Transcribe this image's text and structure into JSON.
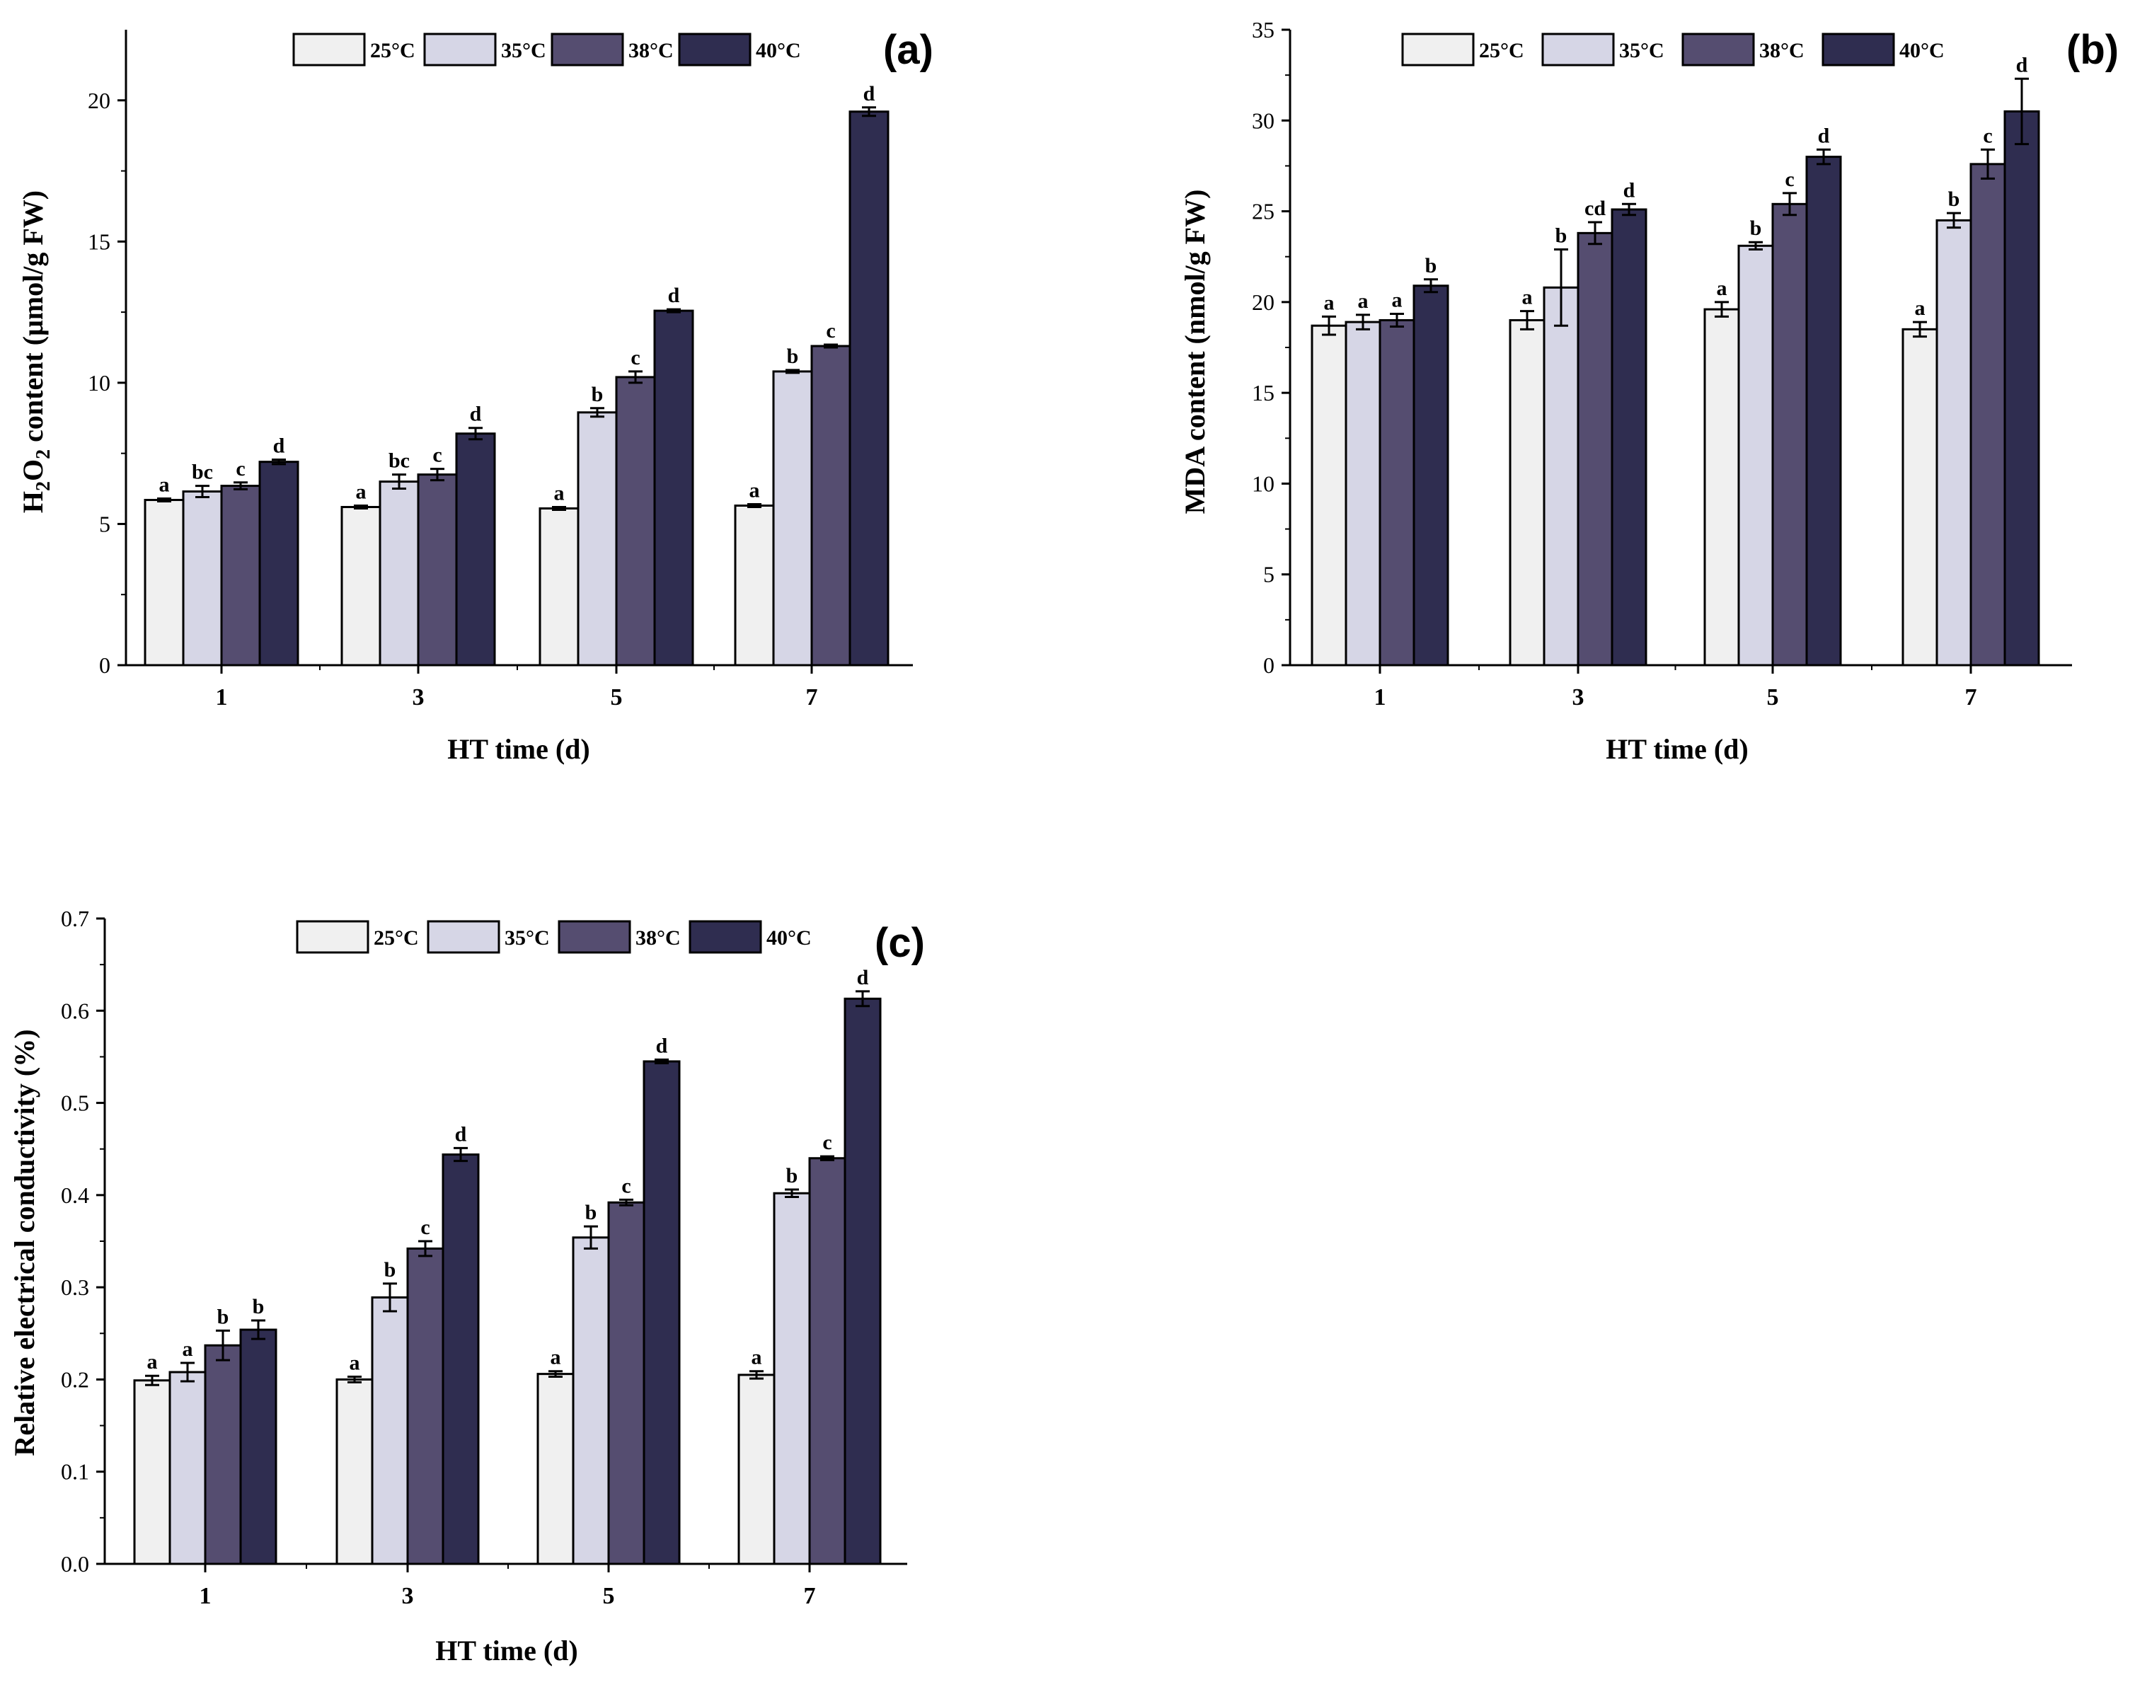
{
  "colors": {
    "s25": "#f0f0f0",
    "s35": "#d6d6e6",
    "s38": "#554d70",
    "s40": "#2f2d50",
    "axis": "#000000"
  },
  "chart_data": [
    {
      "type": "bar",
      "panel_label": "(a)",
      "xlabel": "HT time (d)",
      "ylabel_prefix": "H",
      "ylabel_sub1": "2",
      "ylabel_mid": "O",
      "ylabel_sub2": "2",
      "ylabel_suffix": " content (μmol/g FW)",
      "ylim": [
        0,
        22.5
      ],
      "yticks": [
        "0",
        "5",
        "10",
        "15",
        "20"
      ],
      "ytick_values": [
        0,
        5,
        10,
        15,
        20
      ],
      "categories": [
        "1",
        "3",
        "5",
        "7"
      ],
      "legend_position": "top-center",
      "series": [
        {
          "name": "25°C",
          "values": [
            5.85,
            5.6,
            5.55,
            5.65
          ],
          "errors": [
            0.05,
            0.05,
            0.05,
            0.05
          ],
          "letters": [
            "a",
            "a",
            "a",
            "a"
          ]
        },
        {
          "name": "35°C",
          "values": [
            6.15,
            6.5,
            8.95,
            10.4
          ],
          "errors": [
            0.2,
            0.25,
            0.15,
            0.05
          ],
          "letters": [
            "bc",
            "bc",
            "b",
            "b"
          ]
        },
        {
          "name": "38°C",
          "values": [
            6.35,
            6.75,
            10.2,
            11.3
          ],
          "errors": [
            0.12,
            0.2,
            0.2,
            0.05
          ],
          "letters": [
            "c",
            "c",
            "c",
            "c"
          ]
        },
        {
          "name": "40°C",
          "values": [
            7.2,
            8.2,
            12.55,
            19.6
          ],
          "errors": [
            0.08,
            0.2,
            0.05,
            0.15
          ],
          "letters": [
            "d",
            "d",
            "d",
            "d"
          ]
        }
      ]
    },
    {
      "type": "bar",
      "panel_label": "(b)",
      "xlabel": "HT time (d)",
      "ylabel": "MDA content (nmol/g FW)",
      "ylim": [
        0,
        35
      ],
      "yticks": [
        "0",
        "5",
        "10",
        "15",
        "20",
        "25",
        "30",
        "35"
      ],
      "ytick_values": [
        0,
        5,
        10,
        15,
        20,
        25,
        30,
        35
      ],
      "categories": [
        "1",
        "3",
        "5",
        "7"
      ],
      "legend_position": "top-center",
      "series": [
        {
          "name": "25°C",
          "values": [
            18.7,
            19.0,
            19.6,
            18.5
          ],
          "errors": [
            0.5,
            0.5,
            0.4,
            0.4
          ],
          "letters": [
            "a",
            "a",
            "a",
            "a"
          ]
        },
        {
          "name": "35°C",
          "values": [
            18.9,
            20.8,
            23.1,
            24.5
          ],
          "errors": [
            0.4,
            2.1,
            0.2,
            0.4
          ],
          "letters": [
            "a",
            "b",
            "b",
            "b"
          ]
        },
        {
          "name": "38°C",
          "values": [
            19.0,
            23.8,
            25.4,
            27.6
          ],
          "errors": [
            0.35,
            0.6,
            0.6,
            0.8
          ],
          "letters": [
            "a",
            "cd",
            "c",
            "c"
          ]
        },
        {
          "name": "40°C",
          "values": [
            20.9,
            25.1,
            28.0,
            30.5
          ],
          "errors": [
            0.35,
            0.3,
            0.4,
            1.8
          ],
          "letters": [
            "b",
            "d",
            "d",
            "d"
          ]
        }
      ]
    },
    {
      "type": "bar",
      "panel_label": "(c)",
      "xlabel": "HT time (d)",
      "ylabel": "Relative electrical conductivity (%)",
      "ylim": [
        0,
        0.7
      ],
      "yticks": [
        "0.0",
        "0.1",
        "0.2",
        "0.3",
        "0.4",
        "0.5",
        "0.6",
        "0.7"
      ],
      "ytick_values": [
        0,
        0.1,
        0.2,
        0.3,
        0.4,
        0.5,
        0.6,
        0.7
      ],
      "categories": [
        "1",
        "3",
        "5",
        "7"
      ],
      "legend_position": "top-center",
      "series": [
        {
          "name": "25°C",
          "values": [
            0.199,
            0.2,
            0.206,
            0.205
          ],
          "errors": [
            0.005,
            0.003,
            0.003,
            0.004
          ],
          "letters": [
            "a",
            "a",
            "a",
            "a"
          ]
        },
        {
          "name": "35°C",
          "values": [
            0.208,
            0.289,
            0.354,
            0.402
          ],
          "errors": [
            0.01,
            0.015,
            0.012,
            0.004
          ],
          "letters": [
            "a",
            "b",
            "b",
            "b"
          ]
        },
        {
          "name": "38°C",
          "values": [
            0.237,
            0.342,
            0.392,
            0.44
          ],
          "errors": [
            0.016,
            0.008,
            0.003,
            0.002
          ],
          "letters": [
            "b",
            "c",
            "c",
            "c"
          ]
        },
        {
          "name": "40°C",
          "values": [
            0.254,
            0.444,
            0.545,
            0.613
          ],
          "errors": [
            0.01,
            0.007,
            0.002,
            0.008
          ],
          "letters": [
            "b",
            "d",
            "d",
            "d"
          ]
        }
      ]
    }
  ]
}
